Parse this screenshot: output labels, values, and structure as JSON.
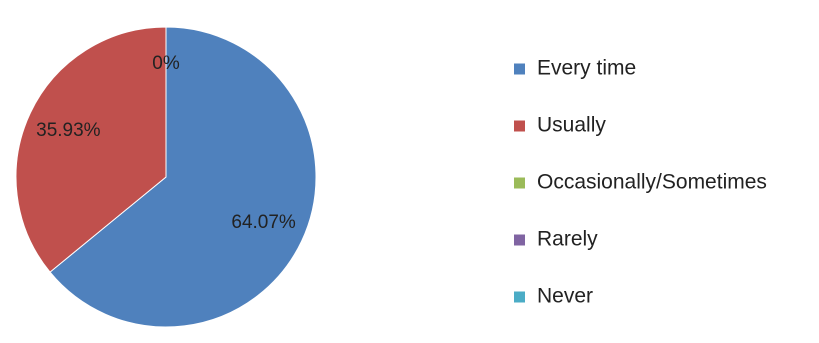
{
  "chart_data": {
    "type": "pie",
    "legend_position": "right",
    "start_angle_deg": 0,
    "direction": "clockwise",
    "slices": [
      {
        "category": "Every time",
        "value": 64.07,
        "label": "64.07%",
        "color": "#4f81bd"
      },
      {
        "category": "Usually",
        "value": 35.93,
        "label": "35.93%",
        "color": "#c0504d"
      },
      {
        "category": "Occasionally/Sometimes",
        "value": 0,
        "label": "0%",
        "color": "#9bbb59"
      },
      {
        "category": "Rarely",
        "value": 0,
        "label": "",
        "color": "#8064a2"
      },
      {
        "category": "Never",
        "value": 0,
        "label": "",
        "color": "#4bacc6"
      }
    ]
  }
}
